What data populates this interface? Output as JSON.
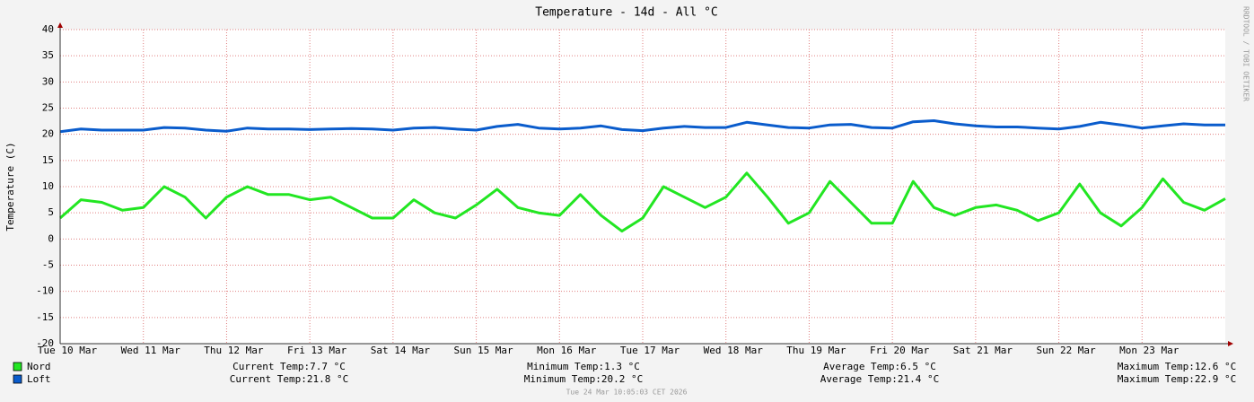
{
  "chart_data": {
    "type": "line",
    "title": "Temperature - 14d - All °C",
    "y_label": "Temperature (C)",
    "side_text": "RRDTOOL / TOBI OETIKER",
    "footer": "Tue 24 Mar 10:05:03 CET 2026",
    "x": [
      0,
      6,
      12,
      18,
      24,
      30,
      36,
      42,
      48,
      54,
      60,
      66,
      72,
      78,
      84,
      90,
      96,
      102,
      108,
      114,
      120,
      126,
      132,
      138,
      144,
      150,
      156,
      162,
      168,
      174,
      180,
      186,
      192,
      198,
      204,
      210,
      216,
      222,
      228,
      234,
      240,
      246,
      252,
      258,
      264,
      270,
      276,
      282,
      288,
      294,
      300,
      306,
      312,
      318,
      324,
      330,
      336
    ],
    "xlim": [
      0,
      336
    ],
    "xticks": [
      {
        "value": 0,
        "label": "Tue 10 Mar"
      },
      {
        "value": 24,
        "label": "Wed 11 Mar"
      },
      {
        "value": 48,
        "label": "Thu 12 Mar"
      },
      {
        "value": 72,
        "label": "Fri 13 Mar"
      },
      {
        "value": 96,
        "label": "Sat 14 Mar"
      },
      {
        "value": 120,
        "label": "Sun 15 Mar"
      },
      {
        "value": 144,
        "label": "Mon 16 Mar"
      },
      {
        "value": 168,
        "label": "Tue 17 Mar"
      },
      {
        "value": 192,
        "label": "Wed 18 Mar"
      },
      {
        "value": 216,
        "label": "Thu 19 Mar"
      },
      {
        "value": 240,
        "label": "Fri 20 Mar"
      },
      {
        "value": 264,
        "label": "Sat 21 Mar"
      },
      {
        "value": 288,
        "label": "Sun 22 Mar"
      },
      {
        "value": 312,
        "label": "Mon 23 Mar"
      }
    ],
    "ylim": [
      -20,
      40
    ],
    "yticks": [
      -20,
      -15,
      -10,
      -5,
      0,
      5,
      10,
      15,
      20,
      25,
      30,
      35,
      40
    ],
    "grid": true,
    "series": [
      {
        "name": "Nord",
        "color": "#22e622",
        "values": [
          4,
          7.5,
          7,
          5.5,
          6,
          10,
          8,
          4,
          8,
          10,
          8.5,
          8.5,
          7.5,
          8,
          6,
          4,
          4,
          7.5,
          5,
          4,
          6.5,
          9.5,
          6,
          5,
          4.5,
          8.5,
          4.5,
          1.5,
          4,
          10,
          8,
          6,
          8,
          12.6,
          8,
          3,
          5,
          11,
          7,
          3,
          3,
          11,
          6,
          4.5,
          6,
          6.5,
          5.5,
          3.5,
          5,
          10.5,
          5,
          2.5,
          6,
          11.5,
          7,
          5.5,
          7.7
        ],
        "stats": [
          "Current Temp:7.7 °C",
          "Minimum Temp:1.3 °C",
          "Average Temp:6.5 °C",
          "Maximum Temp:12.6 °C"
        ]
      },
      {
        "name": "Loft",
        "color": "#0a5ccc",
        "values": [
          20.5,
          21,
          20.8,
          20.8,
          20.8,
          21.3,
          21.2,
          20.8,
          20.6,
          21.2,
          21,
          21,
          20.9,
          21,
          21.1,
          21,
          20.8,
          21.2,
          21.3,
          21,
          20.8,
          21.5,
          21.9,
          21.2,
          21,
          21.2,
          21.6,
          20.9,
          20.7,
          21.2,
          21.5,
          21.3,
          21.3,
          22.3,
          21.8,
          21.3,
          21.2,
          21.8,
          21.9,
          21.3,
          21.2,
          22.4,
          22.6,
          22,
          21.6,
          21.4,
          21.4,
          21.2,
          21,
          21.5,
          22.3,
          21.8,
          21.2,
          21.6,
          22,
          21.8,
          21.8
        ],
        "stats": [
          "Current Temp:21.8 °C",
          "Minimum Temp:20.2 °C",
          "Average Temp:21.4 °C",
          "Maximum Temp:22.9 °C"
        ]
      }
    ]
  }
}
